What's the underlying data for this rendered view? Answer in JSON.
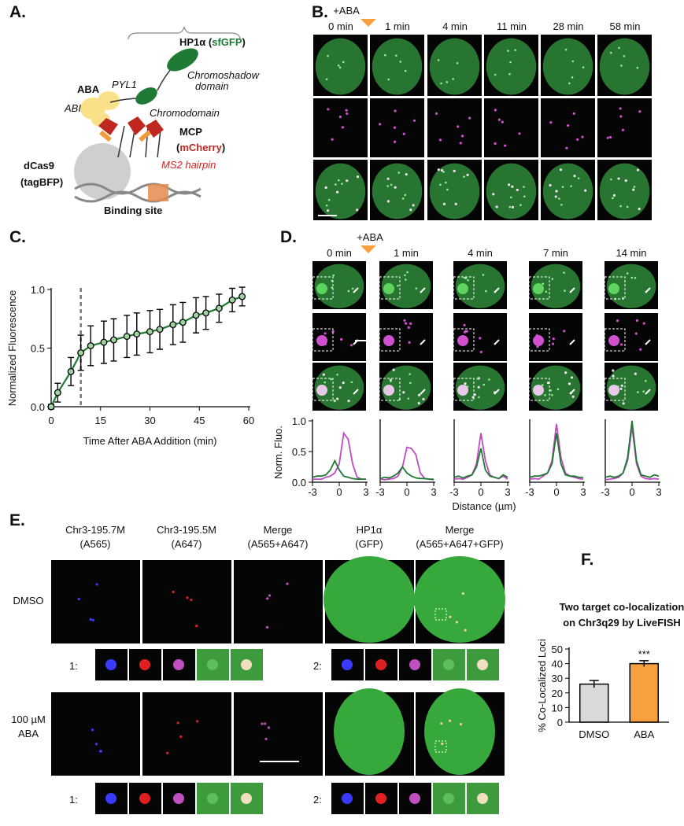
{
  "panel_labels": [
    "A.",
    "B.",
    "C.",
    "D.",
    "E.",
    "F."
  ],
  "schematic": {
    "hp1": [
      "HP1α (",
      "sfGFP",
      ")"
    ],
    "chromoshadow": [
      "Chromoshadow",
      "domain"
    ],
    "chromodomain": "Chromodomain",
    "aba": "ABA",
    "pyl1": "PYL1",
    "abi": "ABI",
    "mcp": "MCP",
    "mcherry": [
      "(",
      "mCherry",
      ")"
    ],
    "ms2": "MS2 hairpin",
    "dcas9": [
      "dCas9",
      "(tagBFP)"
    ],
    "binding_site": "Binding site"
  },
  "panel_b": {
    "treatment": "+ABA",
    "times": [
      "0 min",
      "1 min",
      "4 min",
      "11 min",
      "28 min",
      "58 min"
    ]
  },
  "panel_d": {
    "treatment": "+ABA",
    "times": [
      "0 min",
      "1 min",
      "4 min",
      "7 min",
      "14 min"
    ],
    "y_label": "Norm. Fluo.",
    "x_label": "Distance (µm)"
  },
  "panel_e": {
    "columns": [
      [
        "Chr3-195.7M",
        "(A565)"
      ],
      [
        "Chr3-195.5M",
        "(A647)"
      ],
      [
        "Merge",
        "(A565+A647)"
      ],
      [
        "HP1α",
        "(GFP)"
      ],
      [
        "Merge",
        "(A565+A647+GFP)"
      ]
    ],
    "rows": [
      [
        "DMSO"
      ],
      [
        "100 µM",
        "ABA"
      ]
    ],
    "crop_labels": [
      "1:",
      "2:"
    ]
  },
  "chart_data": [
    {
      "type": "line",
      "x_label": "Time After ABA Addition (min)",
      "y_label": "Normalized Fluorescence",
      "x": [
        0,
        2,
        6,
        9,
        12,
        16,
        19,
        23,
        26,
        30,
        33,
        37,
        40,
        44,
        47,
        51,
        55,
        58
      ],
      "series": [
        {
          "color": "#1e7a34",
          "values": [
            0,
            0.12,
            0.3,
            0.46,
            0.52,
            0.55,
            0.57,
            0.6,
            0.62,
            0.64,
            0.66,
            0.7,
            0.72,
            0.78,
            0.8,
            0.84,
            0.91,
            0.94
          ],
          "errors": [
            0.02,
            0.08,
            0.12,
            0.15,
            0.17,
            0.18,
            0.18,
            0.18,
            0.18,
            0.18,
            0.17,
            0.17,
            0.17,
            0.15,
            0.14,
            0.12,
            0.1,
            0.08
          ]
        }
      ],
      "markers": true,
      "vline": 9,
      "xlim": [
        0,
        60
      ],
      "xticks": [
        0,
        15,
        30,
        45,
        60
      ],
      "ylim": [
        0,
        1
      ],
      "yticks": [
        {
          "value": 0,
          "label": "0.0"
        },
        0.5,
        {
          "value": 1,
          "label": "1.0"
        }
      ]
    },
    {
      "type": "line",
      "x": [
        -3,
        -2.5,
        -2,
        -1.5,
        -1,
        -0.5,
        0,
        0.5,
        1,
        1.5,
        2,
        2.5,
        3
      ],
      "series": [
        {
          "color": "#c04bc0",
          "values": [
            0.05,
            0.05,
            0.05,
            0.08,
            0.1,
            0.15,
            0.3,
            0.8,
            0.7,
            0.3,
            0.08,
            0.05,
            0.05
          ]
        },
        {
          "color": "#1e7a34",
          "values": [
            0.08,
            0.1,
            0.1,
            0.12,
            0.2,
            0.35,
            0.2,
            0.1,
            0.08,
            0.06,
            0.05,
            0.05,
            0.05
          ]
        }
      ],
      "xlim": [
        -3,
        3
      ],
      "xticks": [
        -3,
        0,
        3
      ],
      "ylim": [
        0,
        1
      ],
      "yticks": [
        {
          "value": 0,
          "label": "0.0"
        },
        0.5,
        {
          "value": 1,
          "label": "1.0"
        }
      ]
    },
    {
      "type": "line",
      "x": [
        -3,
        -2.5,
        -2,
        -1.5,
        -1,
        -0.5,
        0,
        0.5,
        1,
        1.5,
        2,
        2.5,
        3
      ],
      "series": [
        {
          "color": "#c04bc0",
          "values": [
            0.05,
            0.04,
            0.05,
            0.06,
            0.1,
            0.25,
            0.57,
            0.55,
            0.45,
            0.15,
            0.06,
            0.05,
            0.04
          ]
        },
        {
          "color": "#1e7a34",
          "values": [
            0.06,
            0.08,
            0.07,
            0.1,
            0.15,
            0.25,
            0.15,
            0.1,
            0.07,
            0.06,
            0.06,
            0.05,
            0.05
          ]
        }
      ],
      "xlim": [
        -3,
        3
      ],
      "xticks": [
        -3,
        0,
        3
      ],
      "ylim": [
        0,
        1
      ]
    },
    {
      "type": "line",
      "x": [
        -3,
        -2.5,
        -2,
        -1.5,
        -1,
        -0.5,
        0,
        0.5,
        1,
        1.5,
        2,
        2.5,
        3
      ],
      "series": [
        {
          "color": "#c04bc0",
          "values": [
            0.05,
            0.06,
            0.05,
            0.08,
            0.12,
            0.3,
            0.8,
            0.35,
            0.12,
            0.08,
            0.06,
            0.1,
            0.05
          ]
        },
        {
          "color": "#1e7a34",
          "values": [
            0.08,
            0.1,
            0.07,
            0.1,
            0.12,
            0.25,
            0.55,
            0.2,
            0.1,
            0.08,
            0.06,
            0.12,
            0.08
          ]
        }
      ],
      "xlim": [
        -3,
        3
      ],
      "xticks": [
        -3,
        0,
        3
      ],
      "ylim": [
        0,
        1
      ]
    },
    {
      "type": "line",
      "x": [
        -3,
        -2.5,
        -2,
        -1.5,
        -1,
        -0.5,
        0,
        0.5,
        1,
        1.5,
        2,
        2.5,
        3
      ],
      "series": [
        {
          "color": "#c04bc0",
          "values": [
            0.05,
            0.06,
            0.05,
            0.1,
            0.15,
            0.35,
            0.95,
            0.4,
            0.15,
            0.1,
            0.08,
            0.06,
            0.05
          ]
        },
        {
          "color": "#1e7a34",
          "values": [
            0.08,
            0.1,
            0.1,
            0.12,
            0.15,
            0.3,
            0.8,
            0.3,
            0.12,
            0.1,
            0.1,
            0.08,
            0.08
          ]
        }
      ],
      "xlim": [
        -3,
        3
      ],
      "xticks": [
        -3,
        0,
        3
      ],
      "ylim": [
        0,
        1
      ]
    },
    {
      "type": "line",
      "x": [
        -3,
        -2.5,
        -2,
        -1.5,
        -1,
        -0.5,
        0,
        0.5,
        1,
        1.5,
        2,
        2.5,
        3
      ],
      "series": [
        {
          "color": "#c04bc0",
          "values": [
            0.04,
            0.05,
            0.06,
            0.08,
            0.15,
            0.35,
            0.9,
            0.3,
            0.1,
            0.06,
            0.05,
            0.06,
            0.05
          ]
        },
        {
          "color": "#1e7a34",
          "values": [
            0.08,
            0.1,
            0.08,
            0.1,
            0.15,
            0.4,
            1.0,
            0.35,
            0.12,
            0.1,
            0.08,
            0.12,
            0.1
          ]
        }
      ],
      "xlim": [
        -3,
        3
      ],
      "xticks": [
        -3,
        0,
        3
      ],
      "ylim": [
        0,
        1
      ]
    },
    {
      "type": "bar",
      "title": [
        "Two target co-localization",
        "on Chr3q29 by LiveFISH"
      ],
      "y_label": "% Co-Localized  Loci",
      "categories": [
        "DMSO",
        "ABA"
      ],
      "values": [
        26,
        40
      ],
      "errors": [
        2.5,
        2
      ],
      "colors": [
        "#d9d9d9",
        "#f7a040"
      ],
      "annotations": [
        "",
        "***"
      ],
      "ylim": [
        0,
        50
      ],
      "yticks": [
        0,
        10,
        20,
        30,
        40,
        50
      ]
    }
  ]
}
